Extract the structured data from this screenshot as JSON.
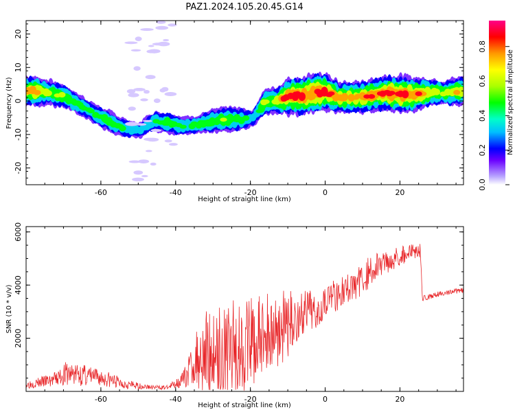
{
  "title": "PAZ1.2024.105.20.45.G14",
  "chart_data": [
    {
      "type": "heatmap",
      "xlabel": "Height of straight line (km)",
      "ylabel": "Frequency (Hz)",
      "xlim": [
        -80,
        37
      ],
      "ylim": [
        -25,
        24
      ],
      "xticks": [
        -60,
        -40,
        -20,
        0,
        20
      ],
      "yticks": [
        -20,
        -10,
        0,
        10,
        20
      ],
      "colorbar": {
        "label": "Normalized spectral amplitude",
        "range": [
          0.0,
          0.95
        ],
        "ticks": [
          0.0,
          0.2,
          0.4,
          0.6,
          0.8
        ]
      },
      "ridge": {
        "x": [
          -78,
          -74,
          -70,
          -66,
          -62,
          -58,
          -54,
          -50,
          -46,
          -42,
          -38,
          -34,
          -30,
          -26,
          -22,
          -19,
          -16,
          -13,
          -10,
          -6,
          -2,
          0,
          4,
          8,
          12,
          16,
          20,
          24,
          28,
          32,
          36
        ],
        "freq": [
          3,
          2.5,
          1.5,
          -1,
          -3.5,
          -6,
          -8,
          -9,
          -6,
          -6.5,
          -7.5,
          -7,
          -6,
          -5.5,
          -5.5,
          -5,
          0,
          0,
          1.5,
          1.5,
          2.5,
          2.5,
          1,
          1,
          1.5,
          2.5,
          2,
          2,
          2.5,
          2.5,
          3
        ],
        "amplitude": [
          0.75,
          0.6,
          0.55,
          0.5,
          0.45,
          0.5,
          0.45,
          0.35,
          0.45,
          0.5,
          0.45,
          0.45,
          0.55,
          0.6,
          0.5,
          0.35,
          0.6,
          0.65,
          0.9,
          0.9,
          0.95,
          0.9,
          0.75,
          0.75,
          0.8,
          0.85,
          0.9,
          0.85,
          0.65,
          0.6,
          0.7
        ]
      }
    },
    {
      "type": "line",
      "xlabel": "Height of straight line (km)",
      "ylabel": "SNR (10 * v/v)",
      "xlim": [
        -80,
        37
      ],
      "ylim": [
        0,
        6200
      ],
      "xticks": [
        -60,
        -40,
        -20,
        0,
        20
      ],
      "yticks": [
        2000,
        4000,
        6000
      ],
      "series": [
        {
          "color": "#e8282b",
          "envelope": {
            "x": [
              -80,
              -76,
              -72,
              -70,
              -66,
              -62,
              -58,
              -54,
              -50,
              -46,
              -42,
              -38,
              -35,
              -33,
              -30,
              -26,
              -22,
              -18,
              -14,
              -10,
              -6,
              -2,
              0,
              4,
              8,
              12,
              16,
              20,
              24,
              25.5,
              26,
              30,
              34,
              37
            ],
            "base": [
              250,
              350,
              450,
              650,
              650,
              550,
              450,
              300,
              200,
              150,
              150,
              450,
              1100,
              1500,
              1500,
              1600,
              1700,
              1900,
              2300,
              2500,
              2900,
              3100,
              3500,
              3700,
              4000,
              4500,
              4900,
              5100,
              5300,
              5300,
              3500,
              3650,
              3750,
              3800
            ],
            "noise": [
              150,
              200,
              300,
              450,
              450,
              350,
              300,
              200,
              120,
              80,
              80,
              300,
              900,
              1500,
              1700,
              1800,
              1800,
              1700,
              1500,
              1300,
              900,
              700,
              700,
              600,
              600,
              600,
              500,
              400,
              300,
              250,
              100,
              100,
              100,
              100
            ]
          }
        }
      ]
    }
  ]
}
